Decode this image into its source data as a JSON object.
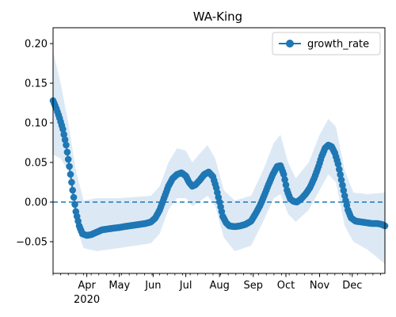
{
  "chart_data": {
    "type": "line",
    "title": "WA-King",
    "xlabel": "",
    "ylabel": "",
    "x_range": [
      "2020-03-01",
      "2020-12-31"
    ],
    "ylim": [
      -0.09,
      0.22
    ],
    "y_ticks": [
      -0.05,
      0.0,
      0.05,
      0.1,
      0.15,
      0.2
    ],
    "y_tick_labels": [
      "−0.05",
      "0.00",
      "0.05",
      "0.10",
      "0.15",
      "0.20"
    ],
    "x_major_ticks": [
      {
        "date": "2020-04-01",
        "label": "Apr"
      },
      {
        "date": "2020-05-01",
        "label": "May"
      },
      {
        "date": "2020-06-01",
        "label": "Jun"
      },
      {
        "date": "2020-07-01",
        "label": "Jul"
      },
      {
        "date": "2020-08-01",
        "label": "Aug"
      },
      {
        "date": "2020-09-01",
        "label": "Sep"
      },
      {
        "date": "2020-10-01",
        "label": "Oct"
      },
      {
        "date": "2020-11-01",
        "label": "Nov"
      },
      {
        "date": "2020-12-01",
        "label": "Dec"
      }
    ],
    "year_label": "2020",
    "legend": {
      "position": "upper right",
      "entries": [
        "growth_rate"
      ]
    },
    "reference_line": {
      "y": 0.0,
      "style": "dashed"
    },
    "colors": {
      "line": "#1f77b4",
      "band": "#dce9f5",
      "reference": "#1f77b4"
    },
    "series": [
      {
        "name": "growth_rate",
        "points": [
          [
            "2020-03-01",
            0.128
          ],
          [
            "2020-03-04",
            0.118
          ],
          [
            "2020-03-07",
            0.106
          ],
          [
            "2020-03-10",
            0.092
          ],
          [
            "2020-03-13",
            0.072
          ],
          [
            "2020-03-16",
            0.045
          ],
          [
            "2020-03-19",
            0.015
          ],
          [
            "2020-03-22",
            -0.012
          ],
          [
            "2020-03-25",
            -0.03
          ],
          [
            "2020-03-28",
            -0.04
          ],
          [
            "2020-04-01",
            -0.042
          ],
          [
            "2020-04-05",
            -0.041
          ],
          [
            "2020-04-10",
            -0.038
          ],
          [
            "2020-04-15",
            -0.035
          ],
          [
            "2020-04-20",
            -0.034
          ],
          [
            "2020-04-25",
            -0.033
          ],
          [
            "2020-05-01",
            -0.032
          ],
          [
            "2020-05-05",
            -0.031
          ],
          [
            "2020-05-10",
            -0.03
          ],
          [
            "2020-05-15",
            -0.029
          ],
          [
            "2020-05-20",
            -0.028
          ],
          [
            "2020-05-25",
            -0.027
          ],
          [
            "2020-05-30",
            -0.025
          ],
          [
            "2020-06-03",
            -0.02
          ],
          [
            "2020-06-07",
            -0.01
          ],
          [
            "2020-06-11",
            0.005
          ],
          [
            "2020-06-15",
            0.02
          ],
          [
            "2020-06-19",
            0.03
          ],
          [
            "2020-06-23",
            0.035
          ],
          [
            "2020-06-27",
            0.037
          ],
          [
            "2020-07-01",
            0.033
          ],
          [
            "2020-07-04",
            0.025
          ],
          [
            "2020-07-07",
            0.02
          ],
          [
            "2020-07-10",
            0.022
          ],
          [
            "2020-07-14",
            0.028
          ],
          [
            "2020-07-18",
            0.035
          ],
          [
            "2020-07-22",
            0.038
          ],
          [
            "2020-07-26",
            0.032
          ],
          [
            "2020-07-29",
            0.018
          ],
          [
            "2020-08-01",
            0.0
          ],
          [
            "2020-08-04",
            -0.018
          ],
          [
            "2020-08-07",
            -0.026
          ],
          [
            "2020-08-10",
            -0.03
          ],
          [
            "2020-08-15",
            -0.031
          ],
          [
            "2020-08-20",
            -0.03
          ],
          [
            "2020-08-25",
            -0.028
          ],
          [
            "2020-08-30",
            -0.024
          ],
          [
            "2020-09-03",
            -0.015
          ],
          [
            "2020-09-07",
            -0.005
          ],
          [
            "2020-09-11",
            0.008
          ],
          [
            "2020-09-15",
            0.022
          ],
          [
            "2020-09-19",
            0.035
          ],
          [
            "2020-09-23",
            0.045
          ],
          [
            "2020-09-26",
            0.046
          ],
          [
            "2020-09-29",
            0.035
          ],
          [
            "2020-10-02",
            0.015
          ],
          [
            "2020-10-05",
            0.004
          ],
          [
            "2020-10-08",
            0.001
          ],
          [
            "2020-10-11",
            0.0
          ],
          [
            "2020-10-15",
            0.004
          ],
          [
            "2020-10-19",
            0.01
          ],
          [
            "2020-10-23",
            0.018
          ],
          [
            "2020-10-27",
            0.03
          ],
          [
            "2020-10-31",
            0.045
          ],
          [
            "2020-11-03",
            0.058
          ],
          [
            "2020-11-06",
            0.068
          ],
          [
            "2020-11-09",
            0.072
          ],
          [
            "2020-11-12",
            0.07
          ],
          [
            "2020-11-15",
            0.062
          ],
          [
            "2020-11-18",
            0.048
          ],
          [
            "2020-11-21",
            0.028
          ],
          [
            "2020-11-24",
            0.008
          ],
          [
            "2020-11-27",
            -0.01
          ],
          [
            "2020-11-30",
            -0.02
          ],
          [
            "2020-12-04",
            -0.024
          ],
          [
            "2020-12-09",
            -0.025
          ],
          [
            "2020-12-14",
            -0.026
          ],
          [
            "2020-12-19",
            -0.027
          ],
          [
            "2020-12-24",
            -0.027
          ],
          [
            "2020-12-28",
            -0.028
          ],
          [
            "2020-12-31",
            -0.03
          ]
        ]
      }
    ],
    "confidence_band": {
      "upper": [
        [
          "2020-03-01",
          0.19
        ],
        [
          "2020-03-08",
          0.15
        ],
        [
          "2020-03-15",
          0.1
        ],
        [
          "2020-03-22",
          0.04
        ],
        [
          "2020-03-29",
          0.002
        ],
        [
          "2020-04-10",
          0.005
        ],
        [
          "2020-05-01",
          0.005
        ],
        [
          "2020-05-30",
          0.008
        ],
        [
          "2020-06-07",
          0.02
        ],
        [
          "2020-06-15",
          0.05
        ],
        [
          "2020-06-23",
          0.068
        ],
        [
          "2020-07-01",
          0.065
        ],
        [
          "2020-07-07",
          0.05
        ],
        [
          "2020-07-13",
          0.06
        ],
        [
          "2020-07-21",
          0.072
        ],
        [
          "2020-07-28",
          0.055
        ],
        [
          "2020-08-05",
          0.015
        ],
        [
          "2020-08-15",
          0.002
        ],
        [
          "2020-08-30",
          0.008
        ],
        [
          "2020-09-10",
          0.04
        ],
        [
          "2020-09-20",
          0.075
        ],
        [
          "2020-09-26",
          0.085
        ],
        [
          "2020-10-03",
          0.05
        ],
        [
          "2020-10-10",
          0.03
        ],
        [
          "2020-10-22",
          0.05
        ],
        [
          "2020-11-01",
          0.085
        ],
        [
          "2020-11-09",
          0.105
        ],
        [
          "2020-11-16",
          0.095
        ],
        [
          "2020-11-24",
          0.04
        ],
        [
          "2020-12-02",
          0.012
        ],
        [
          "2020-12-15",
          0.01
        ],
        [
          "2020-12-31",
          0.012
        ]
      ],
      "lower": [
        [
          "2020-03-01",
          0.06
        ],
        [
          "2020-03-08",
          0.055
        ],
        [
          "2020-03-15",
          0.04
        ],
        [
          "2020-03-22",
          -0.03
        ],
        [
          "2020-03-29",
          -0.058
        ],
        [
          "2020-04-10",
          -0.062
        ],
        [
          "2020-05-01",
          -0.058
        ],
        [
          "2020-05-30",
          -0.052
        ],
        [
          "2020-06-07",
          -0.04
        ],
        [
          "2020-06-15",
          -0.01
        ],
        [
          "2020-06-23",
          0.005
        ],
        [
          "2020-07-01",
          0.005
        ],
        [
          "2020-07-07",
          -0.005
        ],
        [
          "2020-07-13",
          0.0
        ],
        [
          "2020-07-21",
          0.008
        ],
        [
          "2020-07-28",
          -0.005
        ],
        [
          "2020-08-05",
          -0.045
        ],
        [
          "2020-08-15",
          -0.062
        ],
        [
          "2020-08-30",
          -0.055
        ],
        [
          "2020-09-10",
          -0.025
        ],
        [
          "2020-09-20",
          0.005
        ],
        [
          "2020-09-26",
          0.01
        ],
        [
          "2020-10-03",
          -0.015
        ],
        [
          "2020-10-10",
          -0.025
        ],
        [
          "2020-10-22",
          -0.01
        ],
        [
          "2020-11-01",
          0.015
        ],
        [
          "2020-11-09",
          0.035
        ],
        [
          "2020-11-16",
          0.025
        ],
        [
          "2020-11-24",
          -0.03
        ],
        [
          "2020-12-02",
          -0.05
        ],
        [
          "2020-12-15",
          -0.06
        ],
        [
          "2020-12-31",
          -0.078
        ]
      ]
    }
  }
}
